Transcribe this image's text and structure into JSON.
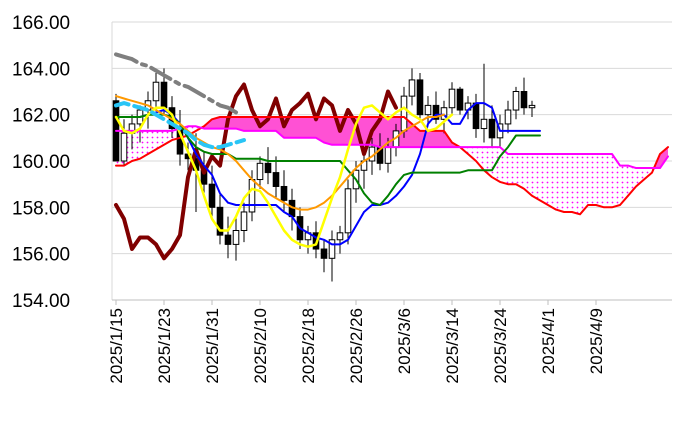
{
  "chart_data": {
    "type": "line",
    "title": "",
    "xlabel": "",
    "ylabel": "",
    "ylim": [
      154,
      166
    ],
    "y_ticks": [
      "154.00",
      "156.00",
      "158.00",
      "160.00",
      "162.00",
      "164.00",
      "166.00"
    ],
    "x_ticks": [
      "2025/1/15",
      "2025/1/23",
      "2025/1/31",
      "2025/2/10",
      "2025/2/18",
      "2025/2/26",
      "2025/3/6",
      "2025/3/14",
      "2025/3/24",
      "2025/4/1",
      "2025/4/9"
    ],
    "grid": "horizontal",
    "legend": "none",
    "candles": [
      {
        "o": 162.6,
        "h": 162.9,
        "l": 160.0,
        "c": 160.0
      },
      {
        "o": 160.0,
        "h": 161.8,
        "l": 159.8,
        "c": 161.2
      },
      {
        "o": 161.2,
        "h": 162.0,
        "l": 160.5,
        "c": 161.6
      },
      {
        "o": 161.6,
        "h": 162.4,
        "l": 160.8,
        "c": 162.2
      },
      {
        "o": 162.2,
        "h": 163.0,
        "l": 161.4,
        "c": 162.6
      },
      {
        "o": 162.6,
        "h": 163.8,
        "l": 162.2,
        "c": 163.4
      },
      {
        "o": 163.4,
        "h": 164.0,
        "l": 162.0,
        "c": 162.3
      },
      {
        "o": 162.3,
        "h": 162.8,
        "l": 161.0,
        "c": 161.4
      },
      {
        "o": 161.4,
        "h": 162.2,
        "l": 159.8,
        "c": 160.3
      },
      {
        "o": 160.3,
        "h": 160.8,
        "l": 159.6,
        "c": 160.1
      },
      {
        "o": 160.1,
        "h": 161.2,
        "l": 157.8,
        "c": 159.6
      },
      {
        "o": 159.6,
        "h": 160.4,
        "l": 158.6,
        "c": 159.0
      },
      {
        "o": 159.0,
        "h": 159.8,
        "l": 157.6,
        "c": 158.0
      },
      {
        "o": 158.0,
        "h": 158.6,
        "l": 156.4,
        "c": 156.8
      },
      {
        "o": 156.8,
        "h": 157.6,
        "l": 155.8,
        "c": 156.4
      },
      {
        "o": 156.4,
        "h": 157.6,
        "l": 155.7,
        "c": 157.0
      },
      {
        "o": 157.0,
        "h": 158.2,
        "l": 156.5,
        "c": 157.8
      },
      {
        "o": 157.8,
        "h": 159.6,
        "l": 157.4,
        "c": 159.2
      },
      {
        "o": 159.2,
        "h": 160.2,
        "l": 158.8,
        "c": 159.9
      },
      {
        "o": 159.9,
        "h": 160.6,
        "l": 159.0,
        "c": 159.5
      },
      {
        "o": 159.5,
        "h": 160.2,
        "l": 158.4,
        "c": 158.9
      },
      {
        "o": 158.9,
        "h": 159.6,
        "l": 157.8,
        "c": 158.3
      },
      {
        "o": 158.3,
        "h": 158.8,
        "l": 157.0,
        "c": 157.6
      },
      {
        "o": 157.6,
        "h": 158.0,
        "l": 156.2,
        "c": 156.6
      },
      {
        "o": 156.6,
        "h": 157.2,
        "l": 156.0,
        "c": 156.9
      },
      {
        "o": 156.9,
        "h": 157.4,
        "l": 155.8,
        "c": 156.2
      },
      {
        "o": 156.2,
        "h": 156.6,
        "l": 155.2,
        "c": 155.8
      },
      {
        "o": 155.8,
        "h": 157.0,
        "l": 154.8,
        "c": 156.6
      },
      {
        "o": 156.6,
        "h": 157.2,
        "l": 156.0,
        "c": 156.9
      },
      {
        "o": 156.9,
        "h": 159.2,
        "l": 156.4,
        "c": 158.8
      },
      {
        "o": 158.8,
        "h": 160.0,
        "l": 158.2,
        "c": 159.6
      },
      {
        "o": 159.6,
        "h": 160.4,
        "l": 158.8,
        "c": 160.0
      },
      {
        "o": 160.0,
        "h": 161.0,
        "l": 159.4,
        "c": 160.6
      },
      {
        "o": 160.6,
        "h": 161.2,
        "l": 159.6,
        "c": 159.9
      },
      {
        "o": 159.9,
        "h": 161.0,
        "l": 159.5,
        "c": 160.6
      },
      {
        "o": 160.6,
        "h": 161.6,
        "l": 160.2,
        "c": 161.3
      },
      {
        "o": 161.3,
        "h": 163.2,
        "l": 161.0,
        "c": 162.8
      },
      {
        "o": 162.8,
        "h": 164.0,
        "l": 162.4,
        "c": 163.5
      },
      {
        "o": 163.5,
        "h": 163.8,
        "l": 161.8,
        "c": 162.0
      },
      {
        "o": 162.0,
        "h": 162.8,
        "l": 161.5,
        "c": 162.4
      },
      {
        "o": 162.4,
        "h": 163.0,
        "l": 161.6,
        "c": 161.8
      },
      {
        "o": 161.8,
        "h": 162.6,
        "l": 161.2,
        "c": 162.3
      },
      {
        "o": 162.3,
        "h": 163.4,
        "l": 162.0,
        "c": 163.1
      },
      {
        "o": 163.1,
        "h": 163.2,
        "l": 162.0,
        "c": 162.2
      },
      {
        "o": 162.2,
        "h": 162.8,
        "l": 161.8,
        "c": 162.5
      },
      {
        "o": 162.5,
        "h": 162.9,
        "l": 161.0,
        "c": 161.4
      },
      {
        "o": 161.4,
        "h": 164.2,
        "l": 160.8,
        "c": 161.8
      },
      {
        "o": 161.8,
        "h": 162.4,
        "l": 160.6,
        "c": 161.0
      },
      {
        "o": 161.0,
        "h": 162.0,
        "l": 160.6,
        "c": 161.6
      },
      {
        "o": 161.6,
        "h": 162.6,
        "l": 161.2,
        "c": 162.2
      },
      {
        "o": 162.2,
        "h": 163.2,
        "l": 161.8,
        "c": 163.0
      },
      {
        "o": 163.0,
        "h": 163.6,
        "l": 162.0,
        "c": 162.3
      },
      {
        "o": 162.3,
        "h": 162.6,
        "l": 161.9,
        "c": 162.4
      }
    ],
    "series": [
      {
        "color": "#800000",
        "width": 4,
        "dash": "",
        "x0": 0,
        "values": [
          158.1,
          157.5,
          156.2,
          156.7,
          156.7,
          156.4,
          155.8,
          156.2,
          156.8,
          159.3,
          160.5,
          159.5,
          160.2,
          159.8,
          161.8,
          162.8,
          163.3,
          162.2,
          161.5,
          161.8,
          162.7,
          161.5,
          162.2,
          162.5,
          162.9,
          161.8,
          162.7,
          162.4,
          161.3,
          162.2,
          161.6,
          160.3,
          161.3,
          161.8,
          163.0,
          162.3
        ]
      },
      {
        "color": "#ff0000",
        "width": 2,
        "dash": "",
        "x0": 0,
        "values": [
          159.8,
          159.8,
          160.0,
          160.1,
          160.3,
          160.5,
          160.7,
          160.9,
          161.0,
          161.1,
          161.3,
          161.5,
          161.8,
          161.9,
          161.9,
          161.9,
          161.9,
          161.9,
          161.9,
          161.9,
          161.9,
          161.9,
          161.9,
          161.9,
          161.9,
          161.9,
          161.9,
          161.9,
          161.9,
          161.9,
          161.9,
          161.9,
          161.9,
          161.9,
          161.9,
          161.9,
          161.9,
          161.6,
          161.3,
          161.3,
          161.3,
          161.3,
          160.8,
          160.6,
          160.3,
          160.0,
          159.6,
          159.3,
          159.1,
          159.0,
          159.0,
          158.8,
          158.5,
          158.3,
          158.1,
          157.9,
          157.8,
          157.8,
          157.7,
          158.1,
          158.1,
          158.0,
          158.0,
          158.1,
          158.5,
          158.9,
          159.2,
          159.5,
          160.3,
          160.6
        ]
      },
      {
        "color": "#ff00ff",
        "width": 2,
        "dash": "",
        "x0": 0,
        "values": [
          161.3,
          161.3,
          161.3,
          161.3,
          161.3,
          161.3,
          161.3,
          161.3,
          161.4,
          161.5,
          161.5,
          161.4,
          161.4,
          161.4,
          161.4,
          161.4,
          161.3,
          161.3,
          161.3,
          161.3,
          161.3,
          161.0,
          161.0,
          161.0,
          161.0,
          161.0,
          160.8,
          160.7,
          160.7,
          160.7,
          160.7,
          160.7,
          160.7,
          160.6,
          160.6,
          160.6,
          160.6,
          160.6,
          160.6,
          160.6,
          160.6,
          160.6,
          160.6,
          160.6,
          160.6,
          160.6,
          160.6,
          160.6,
          160.6,
          160.3,
          160.3,
          160.3,
          160.3,
          160.3,
          160.3,
          160.3,
          160.3,
          160.3,
          160.3,
          160.3,
          160.3,
          160.3,
          160.3,
          159.8,
          159.8,
          159.7,
          159.7,
          159.7,
          159.7,
          160.2
        ]
      },
      {
        "color": "#0000ff",
        "width": 2,
        "dash": "",
        "x0": 0,
        "values": [
          161.9,
          161.9,
          161.9,
          161.9,
          162.0,
          162.1,
          162.2,
          162.0,
          161.6,
          161.0,
          160.3,
          159.8,
          159.4,
          158.6,
          158.2,
          158.1,
          158.1,
          158.1,
          158.1,
          158.1,
          158.1,
          157.8,
          157.6,
          157.1,
          156.9,
          156.7,
          156.6,
          156.4,
          156.4,
          156.6,
          157.2,
          157.8,
          158.1,
          158.1,
          158.2,
          158.5,
          158.9,
          159.4,
          160.3,
          161.6,
          162.0,
          162.0,
          161.6,
          161.6,
          162.2,
          162.5,
          162.5,
          162.3,
          161.3,
          161.3,
          161.3,
          161.3,
          161.3,
          161.3
        ]
      },
      {
        "color": "#008000",
        "width": 2,
        "dash": "",
        "x0": 0,
        "values": [
          161.9,
          161.9,
          161.9,
          161.9,
          162.0,
          162.0,
          162.0,
          161.9,
          161.6,
          161.0,
          160.6,
          160.4,
          160.3,
          160.3,
          160.3,
          160.1,
          160.1,
          160.1,
          160.1,
          160.0,
          160.0,
          160.0,
          160.0,
          160.0,
          160.0,
          160.0,
          160.0,
          160.0,
          160.0,
          159.6,
          159.2,
          158.6,
          158.2,
          158.1,
          158.5,
          159.0,
          159.4,
          159.5,
          159.5,
          159.5,
          159.5,
          159.5,
          159.5,
          159.5,
          159.6,
          159.6,
          159.6,
          159.6,
          160.2,
          160.6,
          161.1,
          161.1,
          161.1,
          161.1
        ]
      },
      {
        "color": "#ff9900",
        "width": 2,
        "dash": "",
        "x0": 0,
        "values": [
          162.8,
          162.7,
          162.6,
          162.5,
          162.4,
          162.2,
          162.0,
          161.8,
          161.6,
          161.3,
          161.0,
          160.8,
          160.6,
          160.5,
          160.3,
          160.0,
          159.6,
          159.2,
          158.9,
          158.6,
          158.4,
          158.2,
          158.0,
          157.9,
          157.9,
          158.0,
          158.2,
          158.5,
          158.9,
          159.3,
          159.7,
          160.0,
          160.2,
          160.5,
          160.8,
          161.0,
          161.3,
          161.5,
          161.7,
          161.9,
          161.9,
          162.0
        ]
      },
      {
        "color": "#ffff00",
        "width": 2.5,
        "dash": "",
        "x0": 0,
        "values": [
          161.9,
          161.3,
          161.2,
          161.4,
          162.0,
          162.3,
          162.3,
          162.0,
          161.2,
          160.4,
          159.6,
          158.5,
          157.5,
          157.0,
          157.0,
          157.6,
          158.4,
          158.8,
          158.7,
          158.2,
          157.6,
          157.0,
          156.6,
          156.4,
          156.3,
          156.4,
          157.4,
          158.4,
          159.3,
          160.5,
          161.6,
          162.3,
          162.4,
          162.1,
          161.8,
          162.1,
          162.3,
          162.0,
          161.8,
          161.3,
          161.4,
          161.7,
          162.0
        ]
      },
      {
        "color": "#7f7f7f",
        "width": 4,
        "dash": "22,6,4,6",
        "x0": 0,
        "values": [
          164.6,
          164.5,
          164.4,
          164.2,
          164.1,
          163.9,
          163.7,
          163.5,
          163.3,
          163.2,
          163.0,
          162.8,
          162.6,
          162.4,
          162.3,
          162.1
        ]
      },
      {
        "color": "#29c5f6",
        "width": 4,
        "dash": "13,6",
        "x0": 0,
        "values": [
          162.4,
          162.5,
          162.4,
          162.3,
          162.2,
          162.0,
          161.8,
          161.6,
          161.4,
          161.2,
          160.9,
          160.7,
          160.6,
          160.6,
          160.7,
          160.8,
          160.9
        ]
      }
    ]
  }
}
